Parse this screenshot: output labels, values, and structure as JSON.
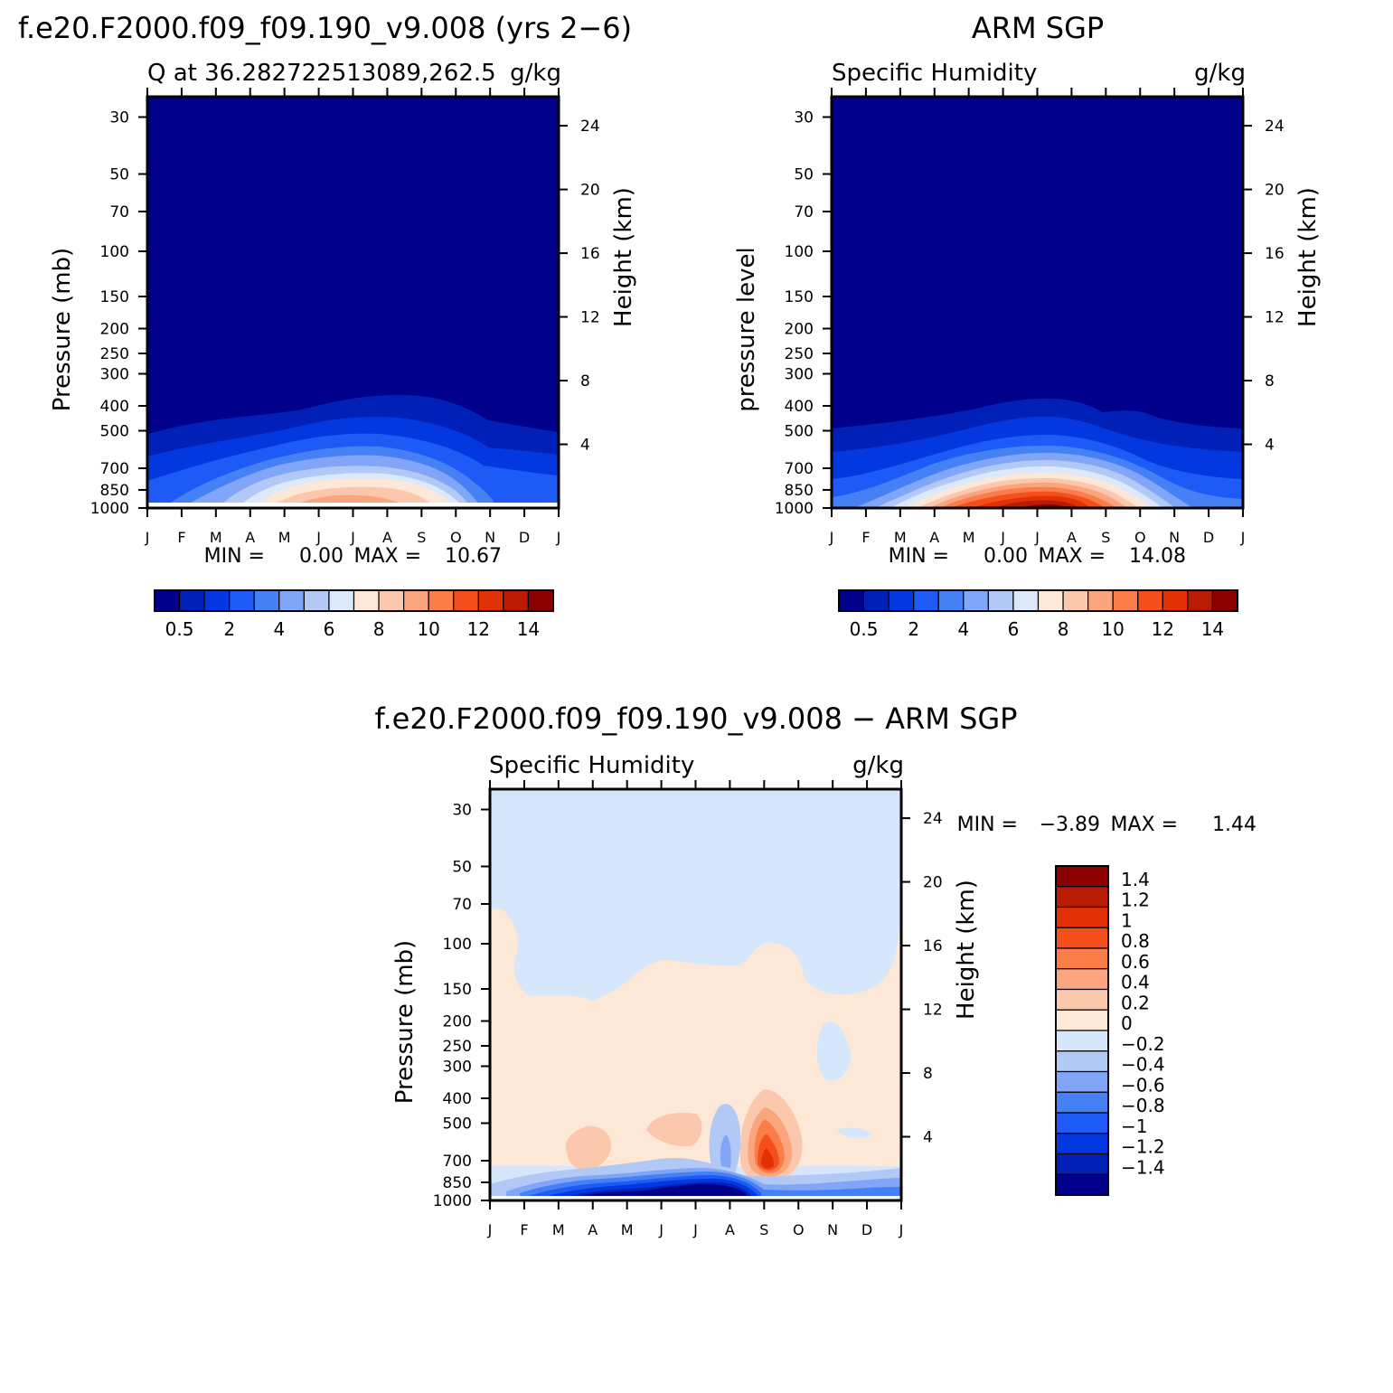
{
  "colors": {
    "seq": [
      "#00008b",
      "#0020b8",
      "#0338e0",
      "#1e5af5",
      "#4680f5",
      "#82a6f7",
      "#b2c8f5",
      "#dbe9fb",
      "#fde8d7",
      "#fcc8ad",
      "#fba57f",
      "#fa7d4a",
      "#f54f1e",
      "#e33106",
      "#ba1b03",
      "#8b0000"
    ],
    "div": [
      "#00008b",
      "#0020b8",
      "#0338e0",
      "#1e5af5",
      "#4680f5",
      "#82a6f7",
      "#b2c8f5",
      "#d6e7fb",
      "#fde8d7",
      "#fcc8ad",
      "#fba57f",
      "#fa7d4a",
      "#f54f1e",
      "#e33106",
      "#ba1b03",
      "#8b0000"
    ],
    "axis": "#000000"
  },
  "months": [
    "J",
    "F",
    "M",
    "A",
    "M",
    "J",
    "J",
    "A",
    "S",
    "O",
    "N",
    "D",
    "J"
  ],
  "pressure_ticks": [
    "30",
    "50",
    "70",
    "100",
    "150",
    "200",
    "250",
    "300",
    "400",
    "500",
    "700",
    "850",
    "1000"
  ],
  "height_ticks": [
    "24",
    "20",
    "16",
    "12",
    "8",
    "4"
  ],
  "chart_data": [
    {
      "type": "heatmap",
      "id": "model",
      "suptitle": "f.e20.F2000.f09_f09.190_v9.008 (yrs 2−6)",
      "left_title": "Q at 36.282722513089,262.5",
      "units": "g/kg",
      "ylabel": "Pressure (mb)",
      "y2label": "Height (km)",
      "min_text": "MIN =",
      "min_value": "0.00",
      "max_text": "MAX =",
      "max_value": "10.67",
      "peak": 10.67,
      "colorbar_labels": [
        "0.5",
        "2",
        "4",
        "6",
        "8",
        "10",
        "12",
        "14"
      ],
      "levels": [
        0.5,
        1,
        2,
        3,
        4,
        5,
        6,
        7,
        8,
        9,
        10,
        11,
        12,
        13,
        14
      ]
    },
    {
      "type": "heatmap",
      "id": "obs",
      "suptitle": "ARM SGP",
      "left_title": "Specific Humidity",
      "units": "g/kg",
      "ylabel": "pressure level",
      "y2label": "Height (km)",
      "min_text": "MIN =",
      "min_value": "0.00",
      "max_text": "MAX =",
      "max_value": "14.08",
      "peak": 14.08,
      "colorbar_labels": [
        "0.5",
        "2",
        "4",
        "6",
        "8",
        "10",
        "12",
        "14"
      ],
      "levels": [
        0.5,
        1,
        2,
        3,
        4,
        5,
        6,
        7,
        8,
        9,
        10,
        11,
        12,
        13,
        14
      ]
    },
    {
      "type": "heatmap",
      "id": "diff",
      "suptitle": "f.e20.F2000.f09_f09.190_v9.008 − ARM SGP",
      "left_title": "Specific Humidity",
      "units": "g/kg",
      "ylabel": "Pressure (mb)",
      "y2label": "Height (km)",
      "min_text": "MIN =",
      "min_value": "−3.89",
      "max_text": "MAX =",
      "max_value": "1.44",
      "colorbar_labels": [
        "1.4",
        "1.2",
        "1",
        "0.8",
        "0.6",
        "0.4",
        "0.2",
        "0",
        "−0.2",
        "−0.4",
        "−0.6",
        "−0.8",
        "−1",
        "−1.2",
        "−1.4"
      ],
      "levels": [
        -1.4,
        -1.2,
        -1,
        -0.8,
        -0.6,
        -0.4,
        -0.2,
        0,
        0.2,
        0.4,
        0.6,
        0.8,
        1,
        1.2,
        1.4
      ]
    }
  ]
}
